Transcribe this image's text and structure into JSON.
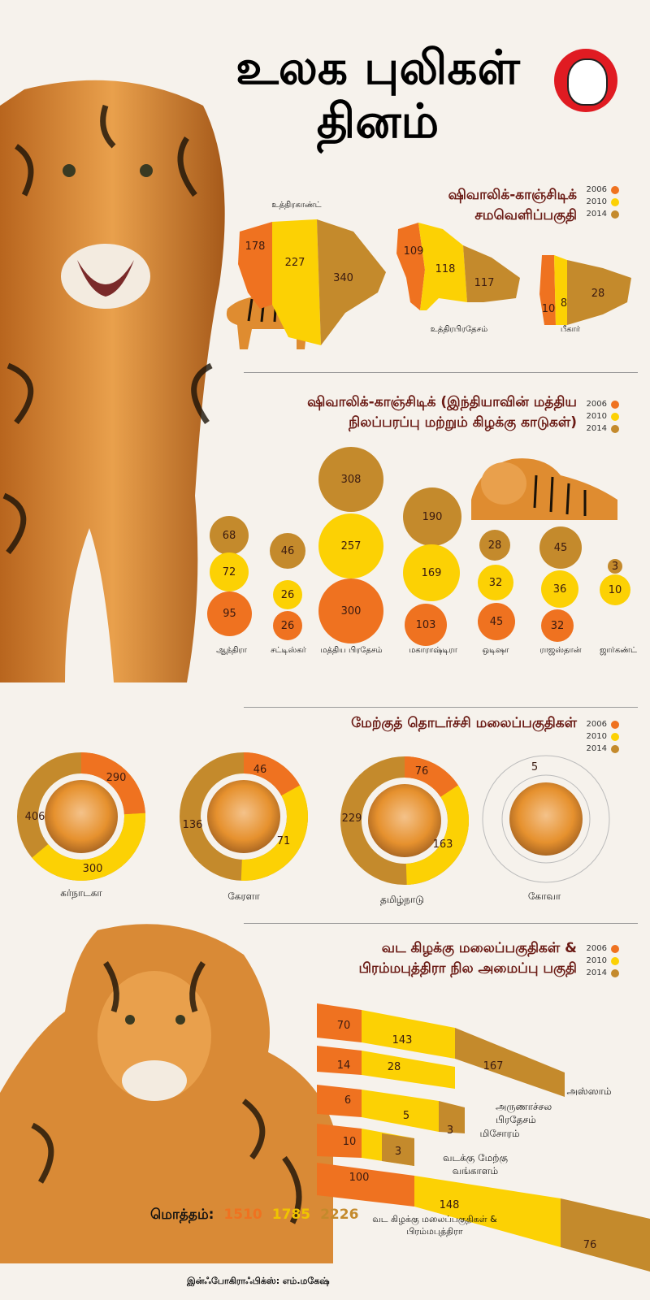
{
  "title": {
    "line1": "உலக புலிகள்",
    "line2": "தினம்"
  },
  "legend": [
    "2006",
    "2010",
    "2014"
  ],
  "colors": {
    "y2006": "#ef7220",
    "y2010": "#fcd104",
    "y2014": "#c48a2c"
  },
  "section1": {
    "title_line1": "ஷிவாலிக்-காஞ்சிடிக்",
    "title_line2": "சமவெளிப்பகுதி",
    "states": [
      {
        "name": "உத்திரகாண்ட்",
        "v2006": "178",
        "v2010": "227",
        "v2014": "340"
      },
      {
        "name": "உத்திரபிரதேசம்",
        "v2006": "109",
        "v2010": "118",
        "v2014": "117"
      },
      {
        "name": "பீகார்",
        "v2006": "10",
        "v2010": "8",
        "v2014": "28"
      }
    ]
  },
  "section2": {
    "title_line1": "ஷிவாலிக்-காஞ்சிடிக் (இந்தியாவின் மத்திய",
    "title_line2": "நிலப்பரப்பு மற்றும் கிழக்கு காடுகள்)",
    "states": [
      {
        "name": "ஆந்திரா",
        "v2014": "68",
        "v2010": "72",
        "v2006": "95"
      },
      {
        "name": "சட்டிஸ்கர்",
        "v2014": "46",
        "v2010": "26",
        "v2006": "26"
      },
      {
        "name": "மத்திய பிரதேசம்",
        "v2014": "308",
        "v2010": "257",
        "v2006": "300"
      },
      {
        "name": "மகாராஷ்டிரா",
        "v2014": "190",
        "v2010": "169",
        "v2006": "103"
      },
      {
        "name": "ஒடிஷா",
        "v2014": "28",
        "v2010": "32",
        "v2006": "45"
      },
      {
        "name": "ராஜஸ்தான்",
        "v2014": "45",
        "v2010": "36",
        "v2006": "32"
      },
      {
        "name": "ஜார்கண்ட்",
        "v2014": "3",
        "v2010": "10",
        "v2006": ""
      }
    ]
  },
  "section3": {
    "title": "மேற்குத் தொடர்ச்சி மலைப்பகுதிகள்",
    "states": [
      {
        "name": "கர்நாடகா",
        "v2006": "290",
        "v2010": "300",
        "v2014": "406"
      },
      {
        "name": "கேரளா",
        "v2006": "46",
        "v2010": "71",
        "v2014": "136"
      },
      {
        "name": "தமிழ்நாடு",
        "v2006": "76",
        "v2010": "163",
        "v2014": "229"
      },
      {
        "name": "கோவா",
        "v2006": "",
        "v2010": "",
        "v2014": "5"
      }
    ]
  },
  "section4": {
    "title_line1": "வட கிழக்கு மலைப்பகுதிகள் &",
    "title_line2": "பிரம்மபுத்திரா நில அமைப்பு பகுதி",
    "rows": [
      {
        "v2006": "70",
        "v2010": "143",
        "v2014": "",
        "name": ""
      },
      {
        "v2006": "14",
        "v2010": "28",
        "v2014": "167",
        "name": "அஸ்ஸாம்"
      },
      {
        "v2006": "6",
        "v2010": "5",
        "v2014": "3",
        "name": "அருணாச்சல பிரதேசம்"
      },
      {
        "v2006": "10",
        "v2010": "",
        "v2014": "3",
        "name": "மிசோரம்"
      },
      {
        "v2006": "100",
        "v2010": "148",
        "v2014": "76",
        "name": "வடக்கு மேற்கு வங்காளம்"
      }
    ],
    "last_label": "வட கிழக்கு மலைப்பகுதிகள் & பிரம்மபுத்திரா"
  },
  "totals": {
    "label": "மொத்தம்:",
    "v2006": "1510",
    "v2010": "1785",
    "v2014": "2226"
  },
  "credit": "இன்ஃபோகிராஃபிக்ஸ்: எம்.மகேஷ்"
}
